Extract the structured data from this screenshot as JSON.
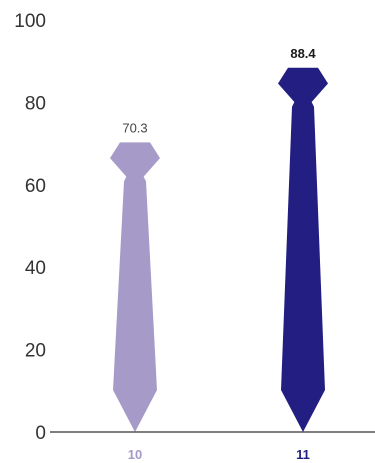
{
  "chart_data": {
    "type": "bar",
    "mark_shape": "necktie",
    "title": "",
    "xlabel": "",
    "ylabel": "",
    "categories": [
      "10",
      "11"
    ],
    "values": [
      70.3,
      88.4
    ],
    "data_labels": [
      "70.3",
      "88.4"
    ],
    "y_ticks": [
      "0",
      "20",
      "40",
      "60",
      "80",
      "100"
    ],
    "ylim": [
      0,
      100
    ],
    "grid": false,
    "legend": "none",
    "colors": [
      "#a69bc8",
      "#231f82"
    ],
    "data_label_colors": [
      "#444444",
      "#1a1a1a"
    ],
    "data_label_bold": [
      false,
      true
    ],
    "axis_color": "#333333"
  }
}
